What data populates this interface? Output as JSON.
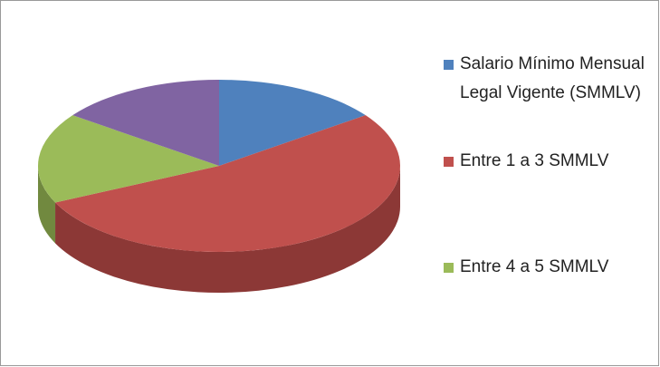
{
  "chart_data": {
    "type": "pie3d",
    "categories": [
      "Salario Mínimo Mensual Legal Vigente (SMMLV)",
      "Entre 1 a 3 SMMLV",
      "Entre 4 a 5 SMMLV",
      null
    ],
    "values": [
      15,
      53,
      17,
      15
    ],
    "colors": [
      "#4f81bd",
      "#c0504d",
      "#9bbb59",
      "#8064a2"
    ],
    "side_colors": [
      "#385d8a",
      "#8c3836",
      "#71893f",
      "#5c4776"
    ]
  }
}
